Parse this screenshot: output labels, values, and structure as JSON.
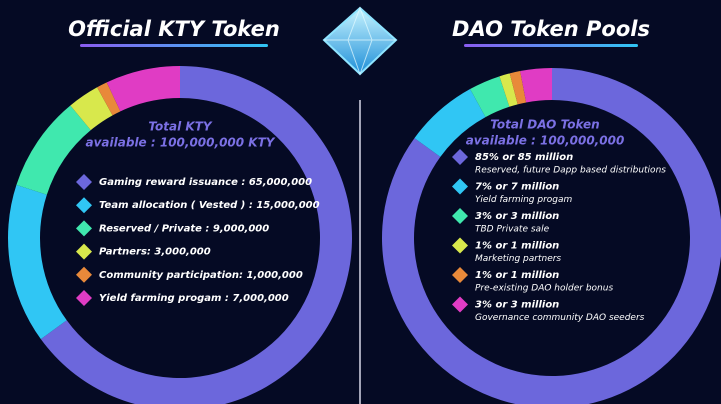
{
  "chart_data": [
    {
      "type": "donut",
      "title": "Official KTY Token",
      "subtitle": [
        "Total KTY",
        "available : 100,000,000 KTY"
      ],
      "categories": [
        "Gaming reward issuance : 65,000,000",
        "Team allocation ( Vested ) : 15,000,000",
        "Reserved / Private : 9,000,000",
        "Partners: 3,000,000",
        "Community participation: 1,000,000",
        "Yield farming progam : 7,000,000"
      ],
      "values": [
        65000000,
        15000000,
        9000000,
        3000000,
        1000000,
        7000000
      ],
      "colors": [
        "#6c67dc",
        "#30c6f4",
        "#40e8ae",
        "#d8e84c",
        "#e8893a",
        "#e03cc4"
      ]
    },
    {
      "type": "donut",
      "title": "DAO Token Pools",
      "subtitle": [
        "Total DAO Token",
        "available : 100,000,000"
      ],
      "categories": [
        "85% or 85 million",
        "7% or 7 million",
        "3% or 3 million",
        "1% or 1 million",
        "1% or 1 million",
        "3% or 3 million"
      ],
      "descriptions": [
        "Reserved, future Dapp based distributions",
        "Yield farming progam",
        "TBD Private sale",
        "Marketing partners",
        "Pre-existing DAO holder bonus",
        "Governance community DAO seeders"
      ],
      "values": [
        85,
        7,
        3,
        1,
        1,
        3
      ],
      "colors": [
        "#6c67dc",
        "#30c6f4",
        "#40e8ae",
        "#d8e84c",
        "#e8893a",
        "#e03cc4"
      ]
    }
  ]
}
